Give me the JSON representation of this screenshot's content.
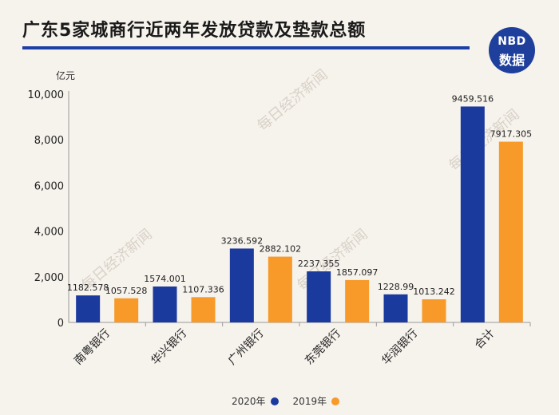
{
  "title": "广东5家城商行近两年发放贷款及垫款总额",
  "logo": {
    "line1": "NBD",
    "line2": "数据"
  },
  "watermark": "每日经济新闻",
  "chart_data": {
    "type": "bar",
    "categories": [
      "南粤银行",
      "华兴银行",
      "广州银行",
      "东莞银行",
      "华润银行",
      "合计"
    ],
    "series": [
      {
        "name": "2020年",
        "color": "#1a3a9e",
        "values": [
          1182.578,
          1574.001,
          3236.592,
          2237.355,
          1228.99,
          9459.516
        ],
        "labels": [
          "1182.578",
          "1574.001",
          "3236.592",
          "2237.355",
          "1228.99",
          "9459.516"
        ]
      },
      {
        "name": "2019年",
        "color": "#f79a2a",
        "values": [
          1057.528,
          1107.336,
          2882.102,
          1857.097,
          1013.242,
          7917.305
        ],
        "labels": [
          "1057.528",
          "1107.336",
          "2882.102",
          "1857.097",
          "1013.242",
          "7917.305"
        ]
      }
    ],
    "ylabel": "亿元",
    "ylim": [
      0,
      10000
    ],
    "yticks": [
      0,
      2000,
      4000,
      6000,
      8000,
      10000
    ],
    "ytick_labels": [
      "0",
      "2,000",
      "4,000",
      "6,000",
      "8,000",
      "10,000"
    ],
    "grid": false,
    "legend": "bottom-center"
  }
}
